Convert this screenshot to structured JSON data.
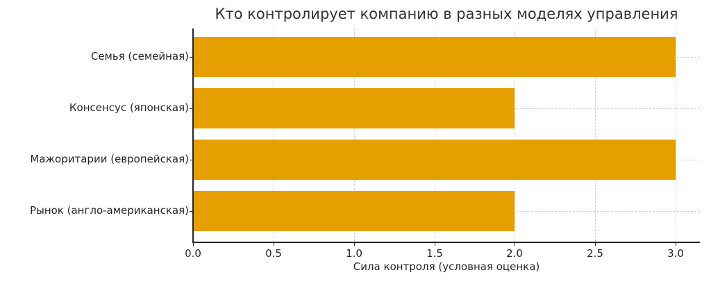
{
  "chart_data": {
    "type": "bar",
    "orientation": "horizontal",
    "title": "Кто контролирует компанию в разных моделях управления",
    "xlabel": "Сила контроля (условная оценка)",
    "ylabel": "",
    "categories": [
      "Семья (семейная)",
      "Консенсус (японская)",
      "Мажоритарии (европейская)",
      "Рынок (англо-американская)"
    ],
    "values": [
      3,
      2,
      3,
      2
    ],
    "xlim": [
      0,
      3.15
    ],
    "xticks": [
      "0.0",
      "0.5",
      "1.0",
      "1.5",
      "2.0",
      "2.5",
      "3.0"
    ],
    "grid": true,
    "grid_style": "dashed",
    "bar_color": "#E69F00",
    "legend": null
  }
}
